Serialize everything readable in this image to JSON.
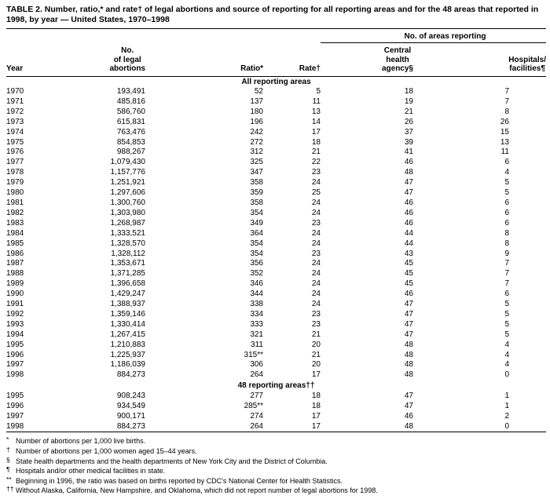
{
  "colors": {
    "background": "#ffffff",
    "text": "#000000"
  },
  "title": "TABLE 2. Number, ratio,* and rate† of legal abortions and source of reporting for all reporting areas and for the 48 areas that reported in 1998, by year — United States, 1970–1998",
  "table": {
    "group_header": "No. of areas reporting",
    "columns": [
      "Year",
      "No.\nof legal\nabortions",
      "Ratio*",
      "Rate†",
      "Central\nhealth\nagency§",
      "Hospitals/\nfacilities¶"
    ],
    "sections": [
      {
        "label": "All reporting areas",
        "rows": [
          [
            "1970",
            "193,491",
            "52",
            "5",
            "18",
            "7"
          ],
          [
            "1971",
            "485,816",
            "137",
            "11",
            "19",
            "7"
          ],
          [
            "1972",
            "586,760",
            "180",
            "13",
            "21",
            "8"
          ],
          [
            "1973",
            "615,831",
            "196",
            "14",
            "26",
            "26"
          ],
          [
            "1974",
            "763,476",
            "242",
            "17",
            "37",
            "15"
          ],
          [
            "1975",
            "854,853",
            "272",
            "18",
            "39",
            "13"
          ],
          [
            "1976",
            "988,267",
            "312",
            "21",
            "41",
            "11"
          ],
          [
            "1977",
            "1,079,430",
            "325",
            "22",
            "46",
            "6"
          ],
          [
            "1978",
            "1,157,776",
            "347",
            "23",
            "48",
            "4"
          ],
          [
            "1979",
            "1,251,921",
            "358",
            "24",
            "47",
            "5"
          ],
          [
            "1980",
            "1,297,606",
            "359",
            "25",
            "47",
            "5"
          ],
          [
            "1981",
            "1,300,760",
            "358",
            "24",
            "46",
            "6"
          ],
          [
            "1982",
            "1,303,980",
            "354",
            "24",
            "46",
            "6"
          ],
          [
            "1983",
            "1,268,987",
            "349",
            "23",
            "46",
            "6"
          ],
          [
            "1984",
            "1,333,521",
            "364",
            "24",
            "44",
            "8"
          ],
          [
            "1985",
            "1,328,570",
            "354",
            "24",
            "44",
            "8"
          ],
          [
            "1986",
            "1,328,112",
            "354",
            "23",
            "43",
            "9"
          ],
          [
            "1987",
            "1,353,671",
            "356",
            "24",
            "45",
            "7"
          ],
          [
            "1988",
            "1,371,285",
            "352",
            "24",
            "45",
            "7"
          ],
          [
            "1989",
            "1,396,658",
            "346",
            "24",
            "45",
            "7"
          ],
          [
            "1990",
            "1,429,247",
            "344",
            "24",
            "46",
            "6"
          ],
          [
            "1991",
            "1,388,937",
            "338",
            "24",
            "47",
            "5"
          ],
          [
            "1992",
            "1,359,146",
            "334",
            "23",
            "47",
            "5"
          ],
          [
            "1993",
            "1,330,414",
            "333",
            "23",
            "47",
            "5"
          ],
          [
            "1994",
            "1,267,415",
            "321",
            "21",
            "47",
            "5"
          ],
          [
            "1995",
            "1,210,883",
            "311",
            "20",
            "48",
            "4"
          ],
          [
            "1996",
            "1,225,937",
            "315**",
            "21",
            "48",
            "4"
          ],
          [
            "1997",
            "1,186,039",
            "306",
            "20",
            "48",
            "4"
          ],
          [
            "1998",
            "884,273",
            "264",
            "17",
            "48",
            "0"
          ]
        ]
      },
      {
        "label": "48 reporting areas††",
        "rows": [
          [
            "1995",
            "908,243",
            "277",
            "18",
            "47",
            "1"
          ],
          [
            "1996",
            "934,549",
            "285**",
            "18",
            "47",
            "1"
          ],
          [
            "1997",
            "900,171",
            "274",
            "17",
            "46",
            "2"
          ],
          [
            "1998",
            "884,273",
            "264",
            "17",
            "48",
            "0"
          ]
        ]
      }
    ]
  },
  "footnotes": [
    {
      "marker": "*",
      "text": "Number of abortions per 1,000 live births."
    },
    {
      "marker": "†",
      "text": "Number of abortions per 1,000 women aged 15–44 years."
    },
    {
      "marker": "§",
      "text": "State health departments and the health departments of New York City and the District of Columbia."
    },
    {
      "marker": "¶",
      "text": "Hospitals and/or other medical facilities in state."
    },
    {
      "marker": "**",
      "text": "Beginning in 1996, the ratio was based on births reported by CDC's National Center for Health Statistics."
    },
    {
      "marker": "††",
      "text": "Without Alaska, California, New Hampshire, and Oklahoma, which did not report number of legal abortions for 1998."
    }
  ]
}
